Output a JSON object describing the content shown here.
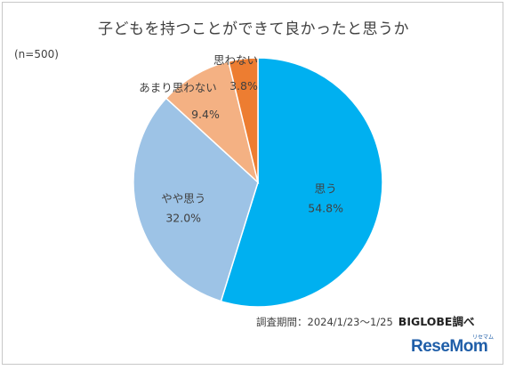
{
  "chart_data": {
    "type": "pie",
    "title": "子どもを持つことができて良かったと思うか",
    "note": "(n=500)",
    "slices": [
      {
        "label": "思う",
        "value": 54.8,
        "display": "54.8%",
        "color": "#00b0f0"
      },
      {
        "label": "やや思う",
        "value": 32.0,
        "display": "32.0%",
        "color": "#9dc3e6"
      },
      {
        "label": "あまり思わない",
        "value": 9.4,
        "display": "9.4%",
        "color": "#f4b183"
      },
      {
        "label": "思わない",
        "value": 3.8,
        "display": "3.8%",
        "color": "#ed7d31"
      }
    ]
  },
  "source_text": "調査期間：2024/1/23～1/25",
  "source_org": "BIGLOBE調べ",
  "logo": {
    "main": "ReseMom",
    "sub": "リセマム"
  }
}
